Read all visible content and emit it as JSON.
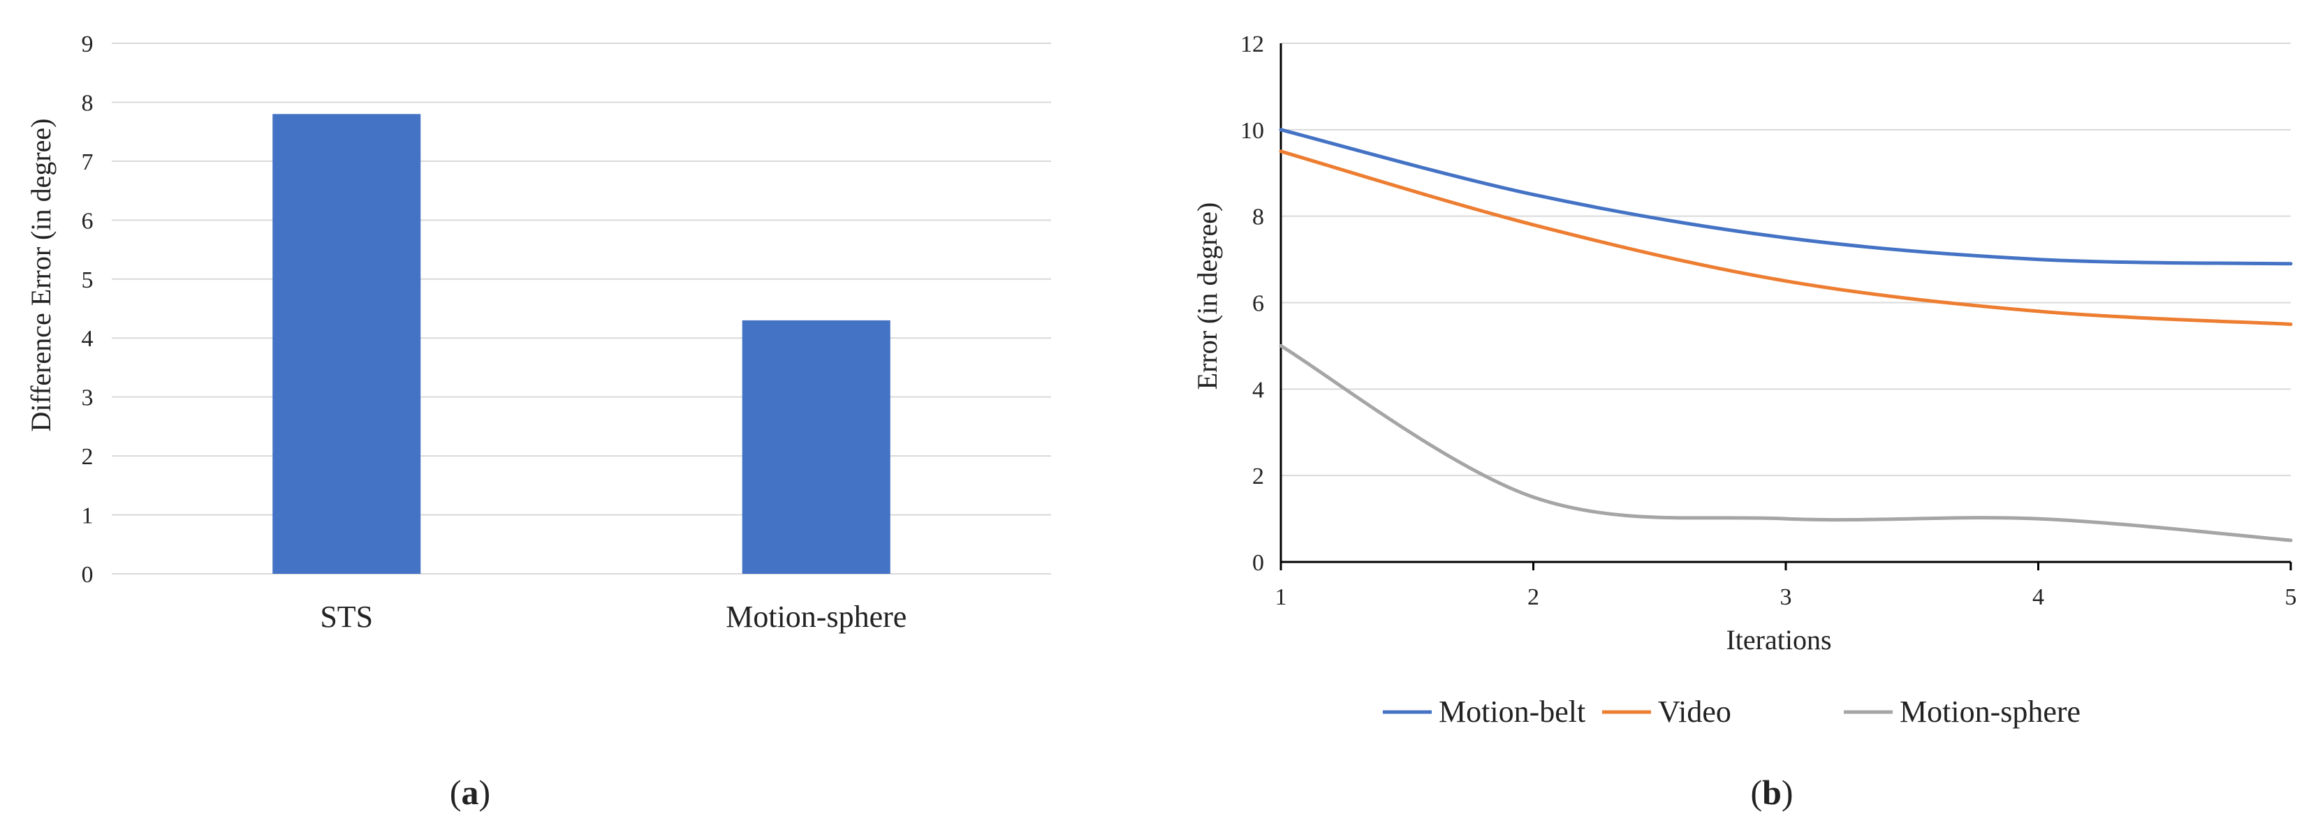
{
  "chart_data": [
    {
      "type": "bar",
      "panel": "(a)",
      "panel_open": "(",
      "panel_letter": "a",
      "panel_close": ")",
      "categories": [
        "STS",
        "Motion-sphere"
      ],
      "values": [
        7.8,
        4.3
      ],
      "ylabel": "Difference Error (in degree)",
      "xlabel": "",
      "ylim": [
        0,
        9
      ],
      "yticks": [
        0,
        1,
        2,
        3,
        4,
        5,
        6,
        7,
        8,
        9
      ],
      "grid": true,
      "bar_color": "#4472C4"
    },
    {
      "type": "line",
      "panel": "(b)",
      "panel_open": "(",
      "panel_letter": "b",
      "panel_close": ")",
      "x": [
        1,
        2,
        3,
        4,
        5
      ],
      "xlabel": "Iterations",
      "ylabel": "Error (in degree)",
      "xlim": [
        1,
        5
      ],
      "ylim": [
        0,
        12
      ],
      "yticks": [
        0,
        2,
        4,
        6,
        8,
        10,
        12
      ],
      "xticks": [
        1,
        2,
        3,
        4,
        5
      ],
      "grid": true,
      "legend_position": "bottom",
      "series": [
        {
          "name": "Motion-belt",
          "color": "#4472C4",
          "values": [
            10,
            8.5,
            7.5,
            7.0,
            6.9
          ]
        },
        {
          "name": "Video",
          "color": "#ED7D31",
          "values": [
            9.5,
            7.8,
            6.5,
            5.8,
            5.5
          ]
        },
        {
          "name": "Motion-sphere",
          "color": "#A5A5A5",
          "values": [
            5.0,
            1.5,
            1.0,
            1.0,
            0.5
          ]
        }
      ]
    }
  ]
}
